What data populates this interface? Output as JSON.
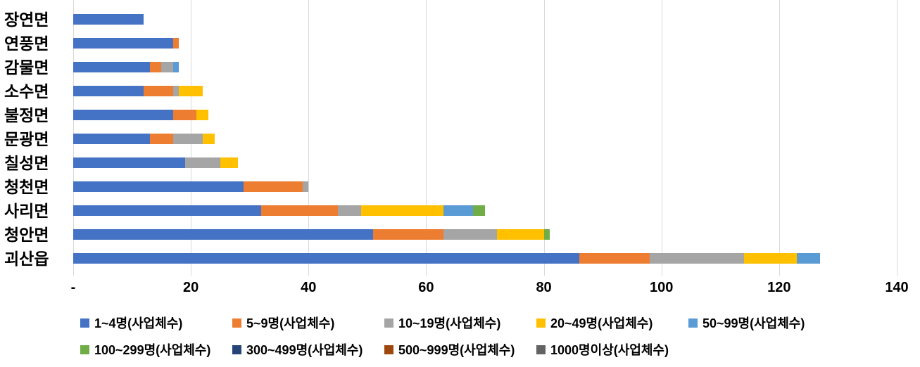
{
  "chart_data": {
    "type": "bar",
    "orientation": "horizontal",
    "stacked": true,
    "title": "",
    "xlabel": "",
    "ylabel": "",
    "grid": true,
    "legend_position": "bottom",
    "x_axis": {
      "min": 0,
      "max": 140,
      "step": 20,
      "tick_labels": [
        "-",
        "20",
        "40",
        "60",
        "80",
        "100",
        "120",
        "140"
      ]
    },
    "categories_top_to_bottom": [
      "장연면",
      "연풍면",
      "감물면",
      "소수면",
      "불정면",
      "문광면",
      "칠성면",
      "청천면",
      "사리면",
      "청안면",
      "괴산읍"
    ],
    "series": [
      {
        "name": "1~4명(사업체수)",
        "color": "#4472c4",
        "values": [
          12,
          17,
          13,
          12,
          17,
          13,
          19,
          29,
          32,
          51,
          86
        ]
      },
      {
        "name": "5~9명(사업체수)",
        "color": "#ed7d31",
        "values": [
          0,
          1,
          2,
          5,
          4,
          4,
          0,
          10,
          13,
          12,
          12
        ]
      },
      {
        "name": "10~19명(사업체수)",
        "color": "#a5a5a5",
        "values": [
          0,
          0,
          2,
          1,
          0,
          5,
          6,
          1,
          4,
          9,
          16
        ]
      },
      {
        "name": "20~49명(사업체수)",
        "color": "#ffc000",
        "values": [
          0,
          0,
          0,
          4,
          2,
          2,
          3,
          0,
          14,
          8,
          9
        ]
      },
      {
        "name": "50~99명(사업체수)",
        "color": "#5b9bd5",
        "values": [
          0,
          0,
          1,
          0,
          0,
          0,
          0,
          0,
          5,
          0,
          4
        ]
      },
      {
        "name": "100~299명(사업체수)",
        "color": "#70ad47",
        "values": [
          0,
          0,
          0,
          0,
          0,
          0,
          0,
          0,
          2,
          1,
          0
        ]
      },
      {
        "name": "300~499명(사업체수)",
        "color": "#264478",
        "values": [
          0,
          0,
          0,
          0,
          0,
          0,
          0,
          0,
          0,
          0,
          0
        ]
      },
      {
        "name": "500~999명(사업체수)",
        "color": "#9e480e",
        "values": [
          0,
          0,
          0,
          0,
          0,
          0,
          0,
          0,
          0,
          0,
          0
        ]
      },
      {
        "name": "1000명이상(사업체수)",
        "color": "#636363",
        "values": [
          0,
          0,
          0,
          0,
          0,
          0,
          0,
          0,
          0,
          0,
          0
        ]
      }
    ],
    "legend_rows": [
      [
        0,
        1,
        2,
        3,
        4
      ],
      [
        5,
        6,
        7,
        8
      ]
    ],
    "gridline_color": "#d9d9d9"
  }
}
